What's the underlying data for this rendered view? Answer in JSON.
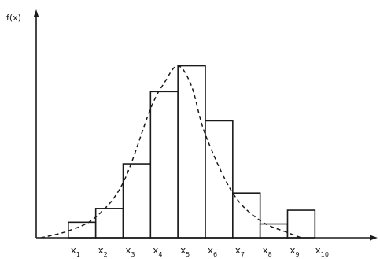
{
  "chart_data": {
    "type": "bar",
    "title": "",
    "ylabel": "f(x)",
    "xlabel": "",
    "categories": [
      "x1",
      "x2",
      "x3",
      "x4",
      "x5",
      "x6",
      "x7",
      "x8",
      "x9"
    ],
    "tick_labels": [
      {
        "base": "x",
        "sub": "1"
      },
      {
        "base": "x",
        "sub": "2"
      },
      {
        "base": "x",
        "sub": "3"
      },
      {
        "base": "x",
        "sub": "4"
      },
      {
        "base": "x",
        "sub": "5"
      },
      {
        "base": "x",
        "sub": "6"
      },
      {
        "base": "x",
        "sub": "7"
      },
      {
        "base": "x",
        "sub": "8"
      },
      {
        "base": "x",
        "sub": "9"
      },
      {
        "base": "x",
        "sub": "10"
      }
    ],
    "bin_edges": [
      1,
      2,
      3,
      4,
      5,
      6,
      7,
      8,
      9,
      10
    ],
    "values": [
      0.09,
      0.17,
      0.43,
      0.85,
      1.0,
      0.68,
      0.26,
      0.08,
      0.16
    ],
    "density_curve": {
      "style": "dashed",
      "points": [
        [
          0,
          0
        ],
        [
          1,
          0.04
        ],
        [
          2,
          0.12
        ],
        [
          3,
          0.32
        ],
        [
          4,
          0.75
        ],
        [
          4.5,
          0.9
        ],
        [
          5,
          1.0
        ],
        [
          5.5,
          0.88
        ],
        [
          6,
          0.6
        ],
        [
          7,
          0.26
        ],
        [
          8,
          0.1
        ],
        [
          9,
          0.03
        ],
        [
          9.5,
          0.0
        ]
      ]
    },
    "xlim": [
      0,
      12
    ],
    "ylim": [
      0,
      1.3
    ],
    "grid": false,
    "legend": "none"
  }
}
